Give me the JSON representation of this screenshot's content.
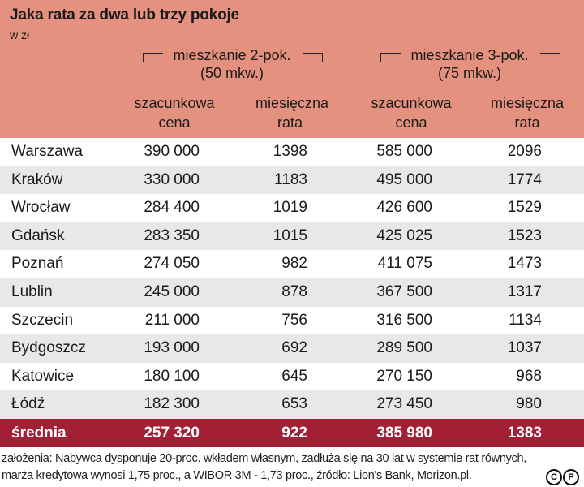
{
  "title": "Jaka rata za dwa lub trzy pokoje",
  "subtitle": "w zł",
  "groups": [
    {
      "line1": "mieszkanie 2-pok.",
      "line2": "(50 mkw.)"
    },
    {
      "line1": "mieszkanie 3-pok.",
      "line2": "(75 mkw.)"
    }
  ],
  "columns": [
    {
      "line1": "szacunkowa",
      "line2": "cena"
    },
    {
      "line1": "miesięczna",
      "line2": "rata"
    },
    {
      "line1": "szacunkowa",
      "line2": "cena"
    },
    {
      "line1": "miesięczna",
      "line2": "rata"
    }
  ],
  "rows": [
    {
      "city": "Warszawa",
      "v1": "390 000",
      "v2": "1398",
      "v3": "585 000",
      "v4": "2096"
    },
    {
      "city": "Kraków",
      "v1": "330 000",
      "v2": "1183",
      "v3": "495 000",
      "v4": "1774"
    },
    {
      "city": "Wrocław",
      "v1": "284 400",
      "v2": "1019",
      "v3": "426 600",
      "v4": "1529"
    },
    {
      "city": "Gdańsk",
      "v1": "283 350",
      "v2": "1015",
      "v3": "425 025",
      "v4": "1523"
    },
    {
      "city": "Poznań",
      "v1": "274 050",
      "v2": "982",
      "v3": "411 075",
      "v4": "1473"
    },
    {
      "city": "Lublin",
      "v1": "245 000",
      "v2": "878",
      "v3": "367 500",
      "v4": "1317"
    },
    {
      "city": "Szczecin",
      "v1": "211 000",
      "v2": "756",
      "v3": "316 500",
      "v4": "1134"
    },
    {
      "city": "Bydgoszcz",
      "v1": "193 000",
      "v2": "692",
      "v3": "289 500",
      "v4": "1037"
    },
    {
      "city": "Katowice",
      "v1": "180 100",
      "v2": "645",
      "v3": "270 150",
      "v4": "968"
    },
    {
      "city": "Łódź",
      "v1": "182 300",
      "v2": "653",
      "v3": "273 450",
      "v4": "980"
    }
  ],
  "average": {
    "city": "średnia",
    "v1": "257 320",
    "v2": "922",
    "v3": "385 980",
    "v4": "1383"
  },
  "footnote": {
    "line1": "założenia: Nabywca dysponuje 20-proc. wkładem własnym, zadłuża się na 30 lat w systemie rat równych,",
    "line2": "marża kredytowa wynosi 1,75 proc., a WIBOR 3M - 1,73 proc., źródło: Lion's Bank, Morizon.pl."
  },
  "logo": {
    "c": "C",
    "p": "P"
  },
  "colors": {
    "header": "#e5917f",
    "average_row": "#a31f34",
    "stripe": "#e8e8e8"
  }
}
